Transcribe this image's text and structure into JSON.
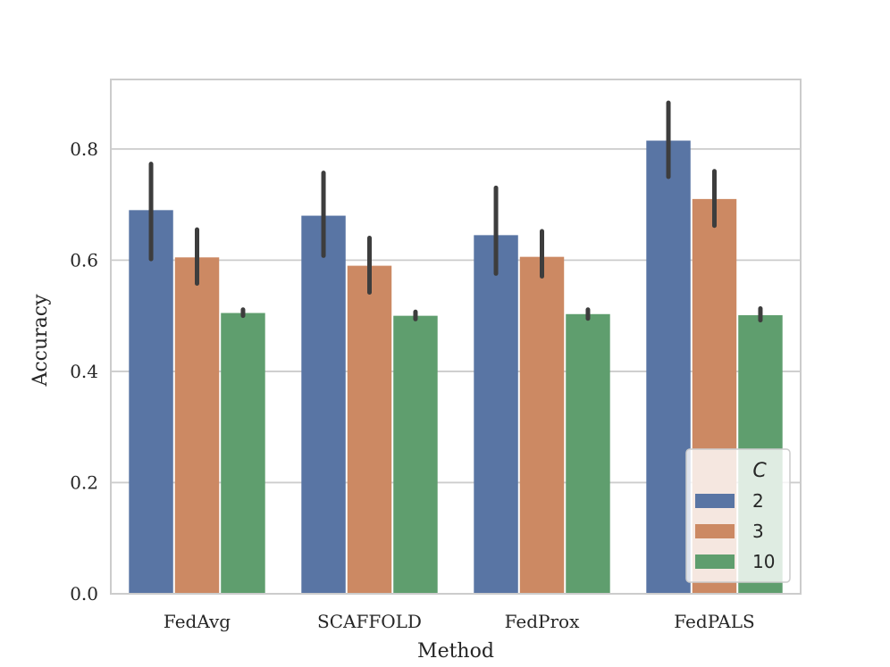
{
  "chart_data": {
    "type": "bar",
    "title": "",
    "xlabel": "Method",
    "ylabel": "Accuracy",
    "categories": [
      "FedAvg",
      "SCAFFOLD",
      "FedProx",
      "FedPALS"
    ],
    "ylim": [
      0,
      0.925
    ],
    "yticks": [
      0.0,
      0.2,
      0.4,
      0.6,
      0.8
    ],
    "ytick_labels": [
      "0.0",
      "0.2",
      "0.4",
      "0.6",
      "0.8"
    ],
    "grid": true,
    "legend": {
      "title": "C",
      "position": "lower-right"
    },
    "series": [
      {
        "name": "2",
        "color": "#5975a4",
        "values": [
          0.69,
          0.68,
          0.645,
          0.815
        ],
        "error_low": [
          0.602,
          0.608,
          0.576,
          0.75
        ],
        "error_high": [
          0.773,
          0.757,
          0.73,
          0.883
        ]
      },
      {
        "name": "3",
        "color": "#cc8963",
        "values": [
          0.605,
          0.59,
          0.606,
          0.71
        ],
        "error_low": [
          0.558,
          0.542,
          0.571,
          0.662
        ],
        "error_high": [
          0.655,
          0.64,
          0.652,
          0.76
        ]
      },
      {
        "name": "10",
        "color": "#5f9e6e",
        "values": [
          0.505,
          0.5,
          0.503,
          0.501
        ],
        "error_low": [
          0.5,
          0.494,
          0.495,
          0.492
        ],
        "error_high": [
          0.511,
          0.507,
          0.511,
          0.513
        ]
      }
    ]
  }
}
